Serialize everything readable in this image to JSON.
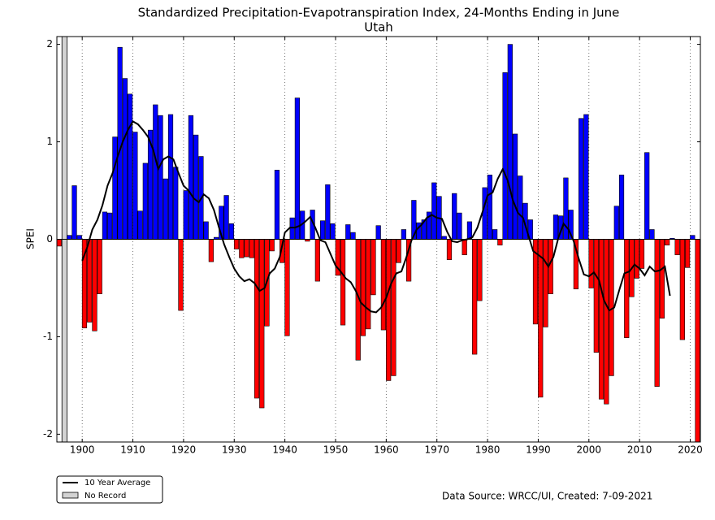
{
  "chart_data": {
    "type": "bar",
    "title": "Standardized Precipitation-Evapotranspiration Index, 24-Months Ending in June",
    "subtitle": "Utah",
    "ylabel": "SPEI",
    "source": "Data Source: WRCC/UI, Created: 7-09-2021",
    "positive_color": "#0000ff",
    "negative_color": "#ff0000",
    "xlim": [
      1895,
      2022
    ],
    "ylim": [
      -2.08,
      2.08
    ],
    "xticks": [
      1900,
      1910,
      1920,
      1930,
      1940,
      1950,
      1960,
      1970,
      1980,
      1990,
      2000,
      2010,
      2020
    ],
    "yticks": [
      -2,
      -1,
      0,
      1,
      2
    ],
    "grid": "x",
    "x": [
      1895,
      1896,
      1897,
      1898,
      1899,
      1900,
      1901,
      1902,
      1903,
      1904,
      1905,
      1906,
      1907,
      1908,
      1909,
      1910,
      1911,
      1912,
      1913,
      1914,
      1915,
      1916,
      1917,
      1918,
      1919,
      1920,
      1921,
      1922,
      1923,
      1924,
      1925,
      1926,
      1927,
      1928,
      1929,
      1930,
      1931,
      1932,
      1933,
      1934,
      1935,
      1936,
      1937,
      1938,
      1939,
      1940,
      1941,
      1942,
      1943,
      1944,
      1945,
      1946,
      1947,
      1948,
      1949,
      1950,
      1951,
      1952,
      1953,
      1954,
      1955,
      1956,
      1957,
      1958,
      1959,
      1960,
      1961,
      1962,
      1963,
      1964,
      1965,
      1966,
      1967,
      1968,
      1969,
      1970,
      1971,
      1972,
      1973,
      1974,
      1975,
      1976,
      1977,
      1978,
      1979,
      1980,
      1981,
      1982,
      1983,
      1984,
      1985,
      1986,
      1987,
      1988,
      1989,
      1990,
      1991,
      1992,
      1993,
      1994,
      1995,
      1996,
      1997,
      1998,
      1999,
      2000,
      2001,
      2002,
      2003,
      2004,
      2005,
      2006,
      2007,
      2008,
      2009,
      2010,
      2011,
      2012,
      2013,
      2014,
      2015,
      2016,
      2017,
      2018,
      2019,
      2020,
      2021
    ],
    "values": [
      -0.07,
      null,
      0.04,
      0.55,
      0.04,
      -0.91,
      -0.85,
      -0.94,
      -0.56,
      0.28,
      0.27,
      1.05,
      1.97,
      1.65,
      1.49,
      1.1,
      0.29,
      0.78,
      1.12,
      1.38,
      1.27,
      0.62,
      1.28,
      0.74,
      -0.73,
      0.5,
      1.27,
      1.07,
      0.85,
      0.18,
      -0.23,
      0.02,
      0.34,
      0.45,
      0.16,
      -0.1,
      -0.19,
      -0.18,
      -0.19,
      -1.63,
      -1.73,
      -0.89,
      -0.12,
      0.71,
      -0.24,
      -0.99,
      0.22,
      1.45,
      0.29,
      -0.02,
      0.3,
      -0.43,
      0.19,
      0.56,
      0.16,
      -0.37,
      -0.88,
      0.15,
      0.07,
      -1.24,
      -0.99,
      -0.92,
      -0.57,
      0.14,
      -0.93,
      -1.45,
      -1.4,
      -0.24,
      0.1,
      -0.43,
      0.4,
      0.17,
      0.2,
      0.28,
      0.58,
      0.44,
      0.03,
      -0.21,
      0.47,
      0.27,
      -0.16,
      0.18,
      -1.18,
      -0.63,
      0.53,
      0.66,
      0.1,
      -0.06,
      1.71,
      2.0,
      1.08,
      0.65,
      0.37,
      0.2,
      -0.87,
      -1.62,
      -0.9,
      -0.56,
      0.25,
      0.24,
      0.63,
      0.3,
      -0.51,
      1.24,
      1.28,
      -0.5,
      -1.16,
      -1.64,
      -1.69,
      -1.4,
      0.34,
      0.66,
      -1.01,
      -0.59,
      -0.4,
      -0.3,
      0.89,
      0.1,
      -1.51,
      -0.81,
      -0.06,
      0.01,
      -0.16,
      -1.03,
      -0.29,
      0.04,
      -2.08
    ],
    "line": {
      "name": "10 Year Average",
      "color": "#000000",
      "x": [
        1900,
        1901,
        1902,
        1903,
        1904,
        1905,
        1906,
        1907,
        1908,
        1909,
        1910,
        1911,
        1912,
        1913,
        1914,
        1915,
        1916,
        1917,
        1918,
        1919,
        1920,
        1921,
        1922,
        1923,
        1924,
        1925,
        1926,
        1927,
        1928,
        1929,
        1930,
        1931,
        1932,
        1933,
        1934,
        1935,
        1936,
        1937,
        1938,
        1939,
        1940,
        1941,
        1942,
        1943,
        1944,
        1945,
        1946,
        1947,
        1948,
        1949,
        1950,
        1951,
        1952,
        1953,
        1954,
        1955,
        1956,
        1957,
        1958,
        1959,
        1960,
        1961,
        1962,
        1963,
        1964,
        1965,
        1966,
        1967,
        1968,
        1969,
        1970,
        1971,
        1972,
        1973,
        1974,
        1975,
        1976,
        1977,
        1978,
        1979,
        1980,
        1981,
        1982,
        1983,
        1984,
        1985,
        1986,
        1987,
        1988,
        1989,
        1990,
        1991,
        1992,
        1993,
        1994,
        1995,
        1996,
        1997,
        1998,
        1999,
        2000,
        2001,
        2002,
        2003,
        2004,
        2005,
        2006,
        2007,
        2008,
        2009,
        2010,
        2011,
        2012,
        2013,
        2014,
        2015,
        2016
      ],
      "values": [
        -0.22,
        -0.08,
        0.1,
        0.2,
        0.35,
        0.55,
        0.68,
        0.85,
        1.0,
        1.12,
        1.21,
        1.18,
        1.12,
        1.05,
        0.92,
        0.72,
        0.82,
        0.85,
        0.82,
        0.68,
        0.55,
        0.5,
        0.42,
        0.38,
        0.46,
        0.42,
        0.3,
        0.12,
        -0.05,
        -0.18,
        -0.3,
        -0.38,
        -0.43,
        -0.41,
        -0.45,
        -0.53,
        -0.5,
        -0.35,
        -0.3,
        -0.18,
        0.07,
        0.12,
        0.12,
        0.14,
        0.18,
        0.23,
        0.12,
        -0.01,
        -0.03,
        -0.15,
        -0.27,
        -0.33,
        -0.4,
        -0.44,
        -0.53,
        -0.65,
        -0.7,
        -0.74,
        -0.75,
        -0.7,
        -0.6,
        -0.45,
        -0.35,
        -0.33,
        -0.18,
        -0.01,
        0.1,
        0.15,
        0.22,
        0.25,
        0.22,
        0.21,
        0.08,
        -0.02,
        -0.03,
        -0.01,
        0.0,
        0.02,
        0.12,
        0.28,
        0.45,
        0.48,
        0.62,
        0.72,
        0.6,
        0.4,
        0.27,
        0.22,
        0.05,
        -0.12,
        -0.16,
        -0.2,
        -0.28,
        -0.18,
        0.02,
        0.16,
        0.1,
        -0.02,
        -0.2,
        -0.36,
        -0.38,
        -0.34,
        -0.42,
        -0.63,
        -0.73,
        -0.7,
        -0.52,
        -0.35,
        -0.33,
        -0.26,
        -0.3,
        -0.37,
        -0.28,
        -0.33,
        -0.32,
        -0.28,
        -0.58
      ]
    },
    "no_record": {
      "name": "No Record",
      "color": "#d3d3d3",
      "x": [
        1896
      ]
    }
  }
}
